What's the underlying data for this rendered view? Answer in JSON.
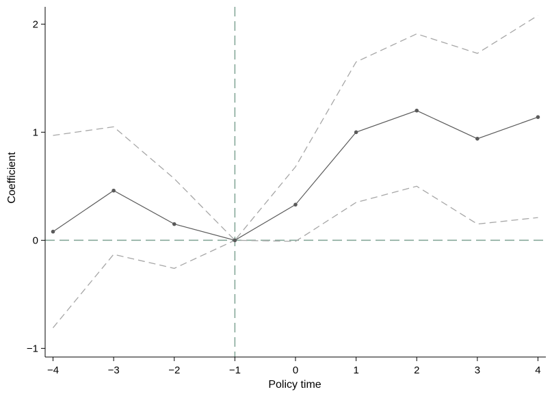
{
  "chart_data": {
    "type": "line",
    "title": "",
    "xlabel": "Policy time",
    "ylabel": "Coefficient",
    "x": [
      -4,
      -3,
      -2,
      -1,
      0,
      1,
      2,
      3,
      4
    ],
    "x_tick_labels": [
      "−4",
      "−3",
      "−2",
      "−1",
      "0",
      "1",
      "2",
      "3",
      "4"
    ],
    "y_ticks": [
      -1,
      0,
      1,
      2
    ],
    "y_tick_labels": [
      "−1",
      "0",
      "1",
      "2"
    ],
    "xlim": [
      -4.13,
      4.13
    ],
    "ylim": [
      -1.08,
      2.16
    ],
    "grid": false,
    "legend": "none",
    "series": [
      {
        "role": "coefficient",
        "style": "solid-with-markers",
        "values": [
          0.08,
          0.46,
          0.15,
          0.0,
          0.33,
          1.0,
          1.2,
          0.94,
          1.14
        ]
      },
      {
        "role": "upper-ci",
        "style": "dashed",
        "values": [
          0.97,
          1.05,
          0.57,
          0.0,
          0.68,
          1.65,
          1.91,
          1.73,
          2.08
        ]
      },
      {
        "role": "lower-ci",
        "style": "dashed",
        "values": [
          -0.81,
          -0.13,
          -0.26,
          0.0,
          -0.01,
          0.35,
          0.5,
          0.15,
          0.21
        ]
      }
    ],
    "reference_lines": [
      {
        "axis": "x",
        "value": -1
      },
      {
        "axis": "y",
        "value": 0
      }
    ],
    "colors": {
      "coefficient": "#5a5a5a",
      "ci": "#a6a6a6",
      "reference": "#86a89a",
      "axis": "#000000"
    }
  }
}
